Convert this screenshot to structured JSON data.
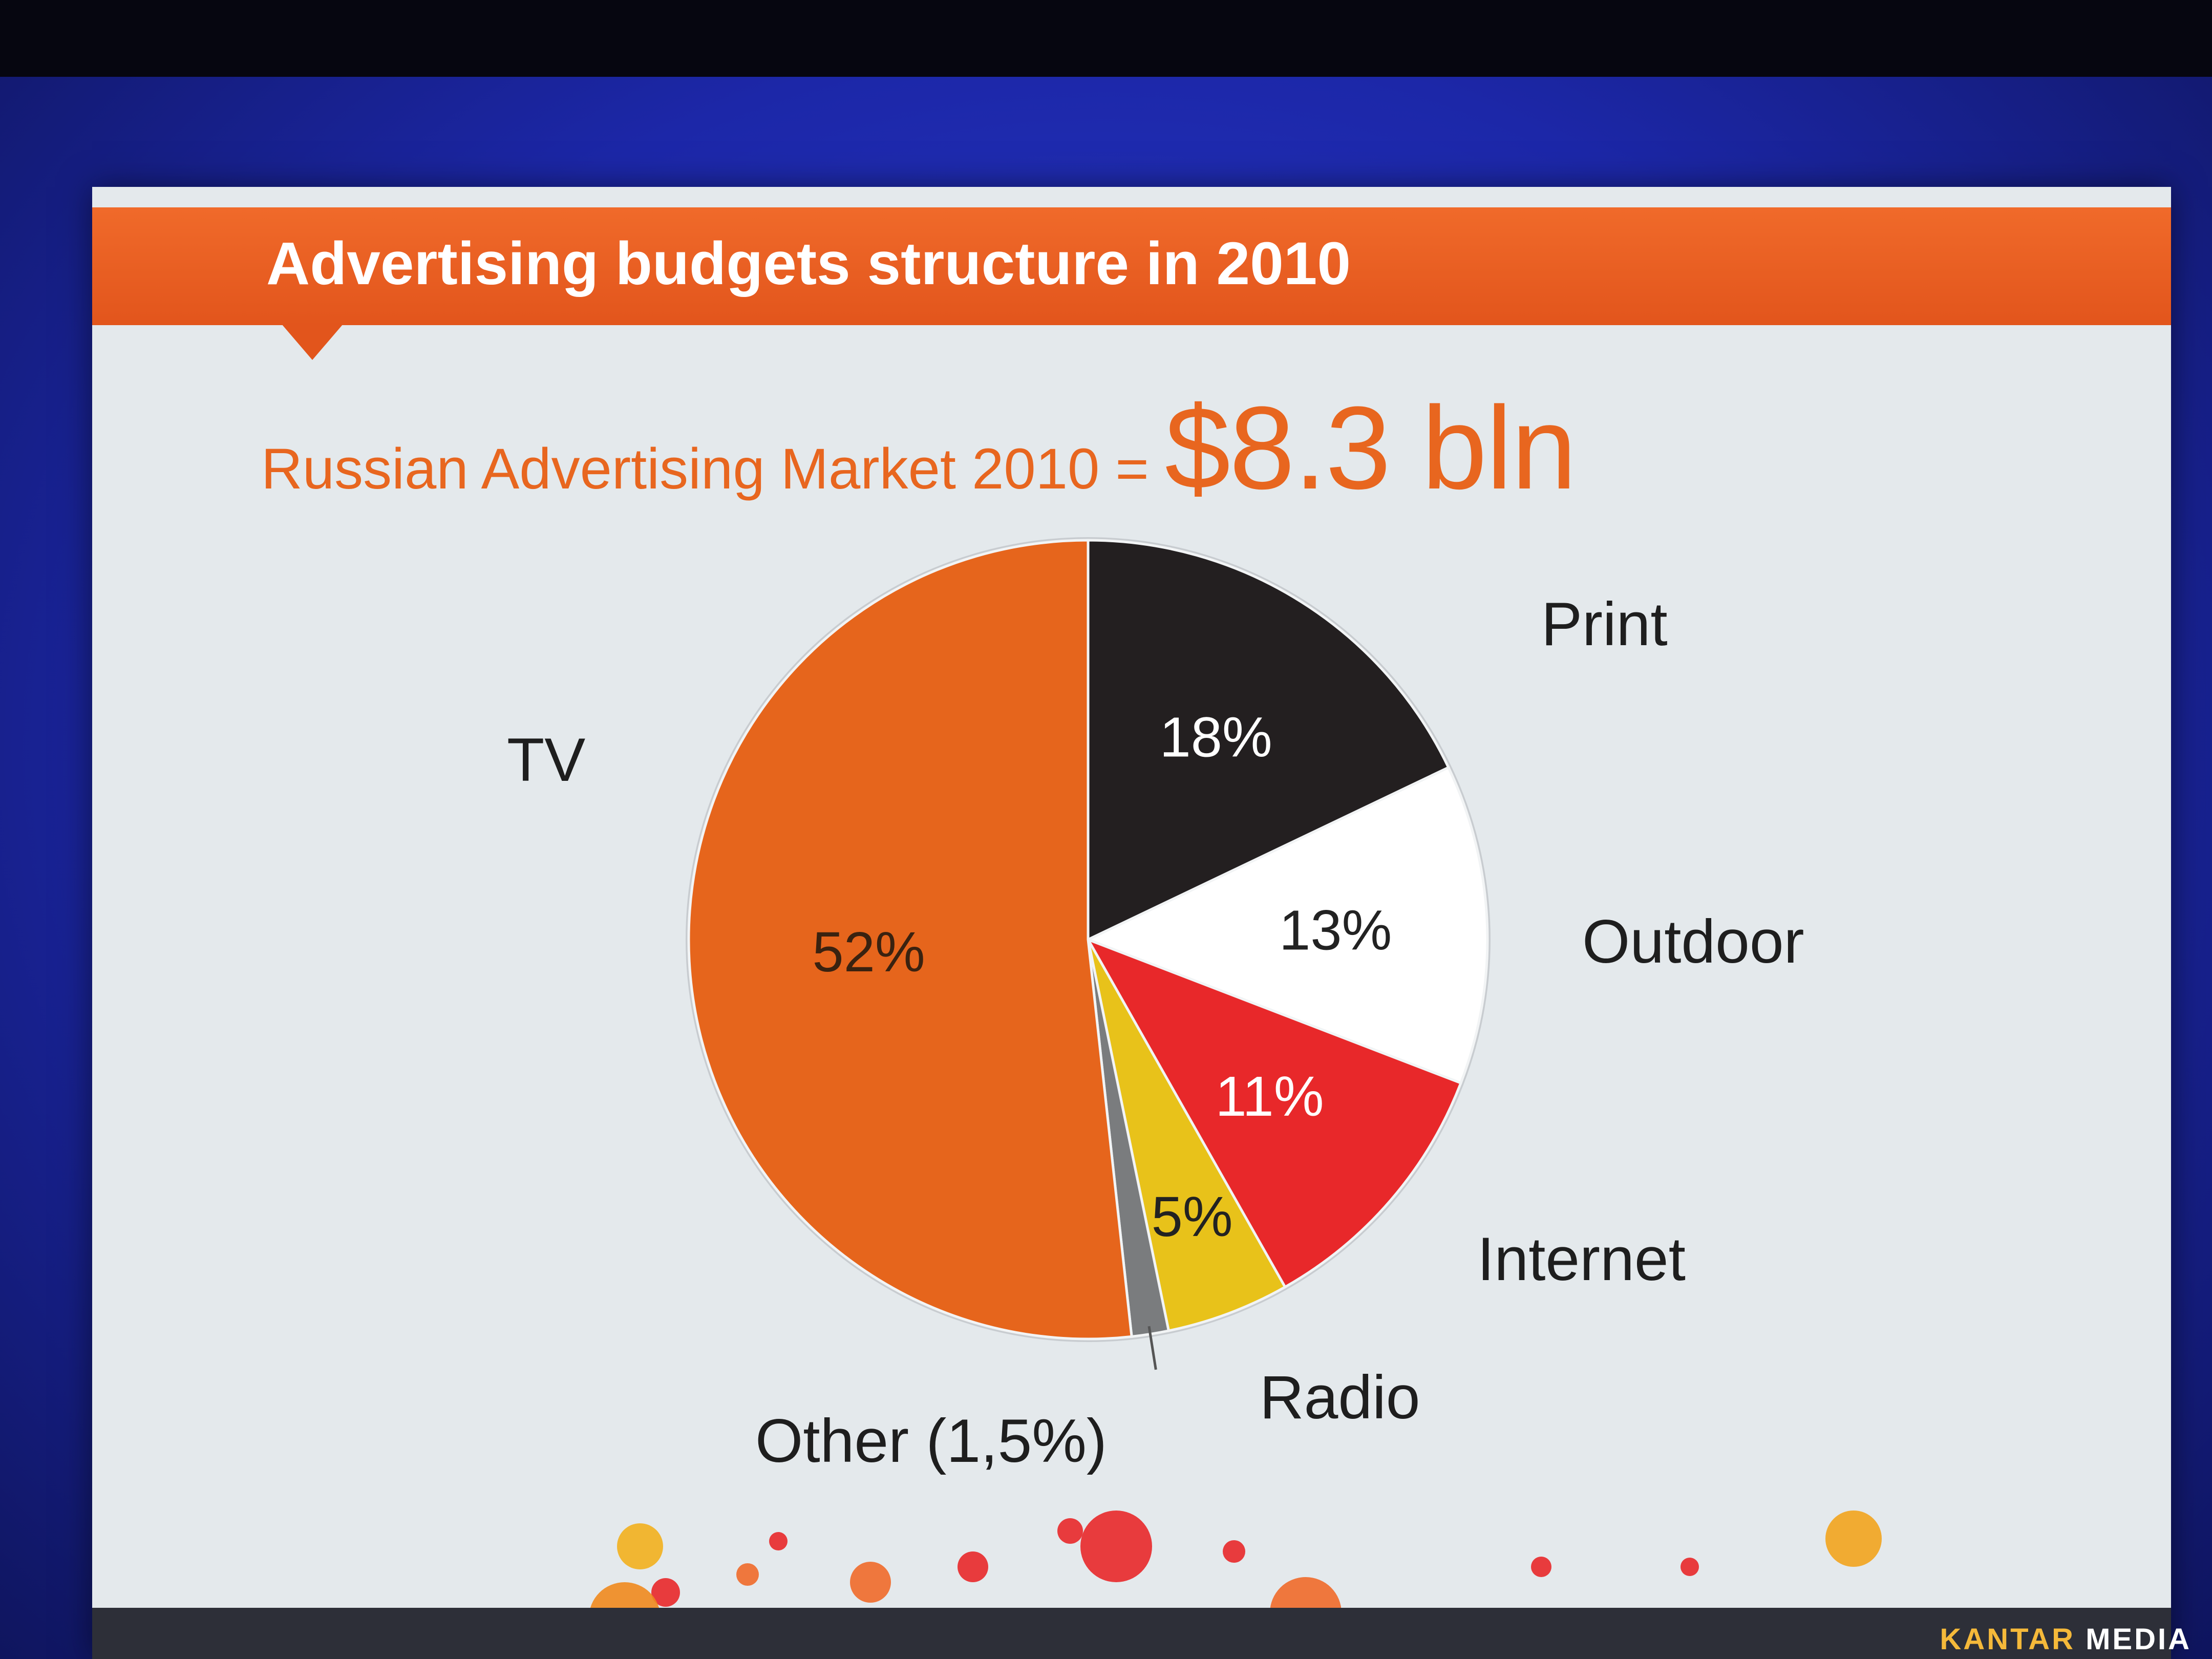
{
  "slide": {
    "title": "Advertising budgets structure in 2010",
    "subtitle_prefix": "Russian Advertising Market 2010 =",
    "subtitle_value": "$8.3 bln",
    "brand_first": "KANTAR",
    "brand_second": "MEDIA"
  },
  "chart_data": {
    "type": "pie",
    "title": "Advertising budgets structure in 2010",
    "start": "12 o'clock",
    "direction": "clockwise",
    "slices": [
      {
        "label": "Print",
        "value": 18,
        "value_label": "18%",
        "color": "#231f20",
        "text_color": "#ffffff"
      },
      {
        "label": "Outdoor",
        "value": 13,
        "value_label": "13%",
        "color": "#ffffff",
        "text_color": "#222222"
      },
      {
        "label": "Internet",
        "value": 11,
        "value_label": "11%",
        "color": "#e8282a",
        "text_color": "#ffffff"
      },
      {
        "label": "Radio",
        "value": 5,
        "value_label": "5%",
        "color": "#e8c21a",
        "text_color": "#222222"
      },
      {
        "label": "Other (1,5%)",
        "value": 1.5,
        "value_label": "",
        "color": "#7a7c7e",
        "text_color": "#222222"
      },
      {
        "label": "TV",
        "value": 52,
        "value_label": "52%",
        "color": "#e6651c",
        "text_color": "#3a2210"
      }
    ]
  },
  "colors": {
    "accent": "#e8661f",
    "header": "#e2551c",
    "slide_background": "#e4e9ec"
  }
}
